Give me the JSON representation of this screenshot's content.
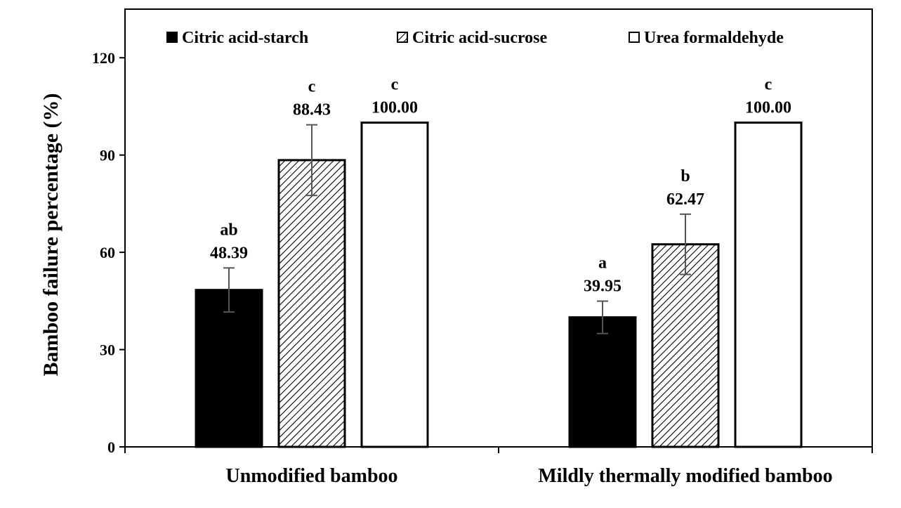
{
  "chart_data": {
    "type": "bar",
    "title": "",
    "xlabel": "",
    "ylabel": "Bamboo failure percentage (%)",
    "ylim": [
      0,
      135
    ],
    "yticks": [
      0,
      30,
      60,
      90,
      120
    ],
    "grid": false,
    "legend_position": "top",
    "categories": [
      "Unmodified bamboo",
      "Mildly thermally modified bamboo"
    ],
    "series": [
      {
        "name": "Citric acid-starch",
        "fill": "solid",
        "color": "#000000",
        "values": [
          48.39,
          39.95
        ],
        "errors": [
          6.8,
          5.0
        ],
        "labels": [
          "48.39",
          "39.95"
        ],
        "significance": [
          "ab",
          "a"
        ]
      },
      {
        "name": "Citric acid-sucrose",
        "fill": "hatched",
        "color": "#000000",
        "values": [
          88.43,
          62.47
        ],
        "errors": [
          10.9,
          9.3
        ],
        "labels": [
          "88.43",
          "62.47"
        ],
        "significance": [
          "c",
          "b"
        ]
      },
      {
        "name": "Urea formaldehyde",
        "fill": "hollow",
        "color": "#ffffff",
        "values": [
          100.0,
          100.0
        ],
        "errors": [
          0,
          0
        ],
        "labels": [
          "100.00",
          "100.00"
        ],
        "significance": [
          "c",
          "c"
        ]
      }
    ]
  }
}
